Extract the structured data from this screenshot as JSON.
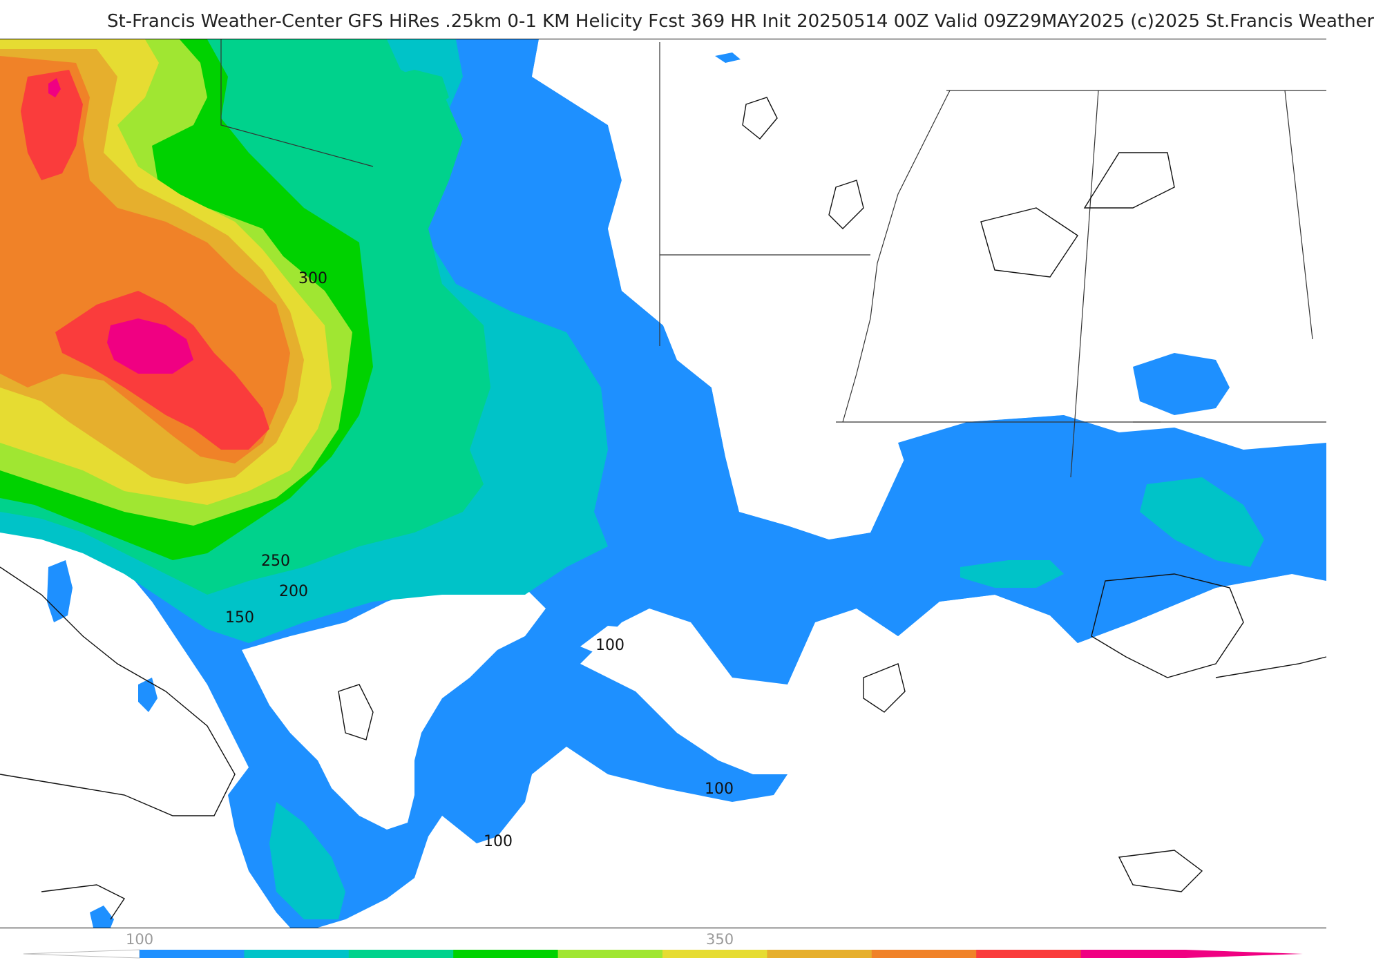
{
  "header": {
    "title": "St-Francis Weather-Center GFS HiRes .25km 0-1 KM Helicity Fcst 369 HR Init 20250514 00Z  Valid 09Z29MAY2025     (c)2025 St.Francis Weather"
  },
  "map": {
    "contour_labels": {
      "c300": "300",
      "c250": "250",
      "c200": "200",
      "c150": "150",
      "c100_gulf_a": "100",
      "c100_gulf_b": "100",
      "c100_south": "100"
    }
  },
  "colorbar": {
    "labels": [
      "100",
      "350"
    ],
    "colors": [
      "#1e90ff",
      "#00c3c8",
      "#00d28c",
      "#00d200",
      "#a0e632",
      "#e6dc32",
      "#e6af2d",
      "#f08228",
      "#fa3c3c",
      "#f00082"
    ]
  },
  "style": {
    "fill_100": "#1e90ff",
    "fill_150": "#00c3c8",
    "fill_200": "#00d28c",
    "fill_250": "#00d200",
    "fill_300": "#a0e632",
    "fill_350": "#e6dc32",
    "fill_400": "#e6af2d",
    "fill_450": "#f08228",
    "fill_500": "#fa3c3c",
    "fill_550": "#f00082"
  }
}
